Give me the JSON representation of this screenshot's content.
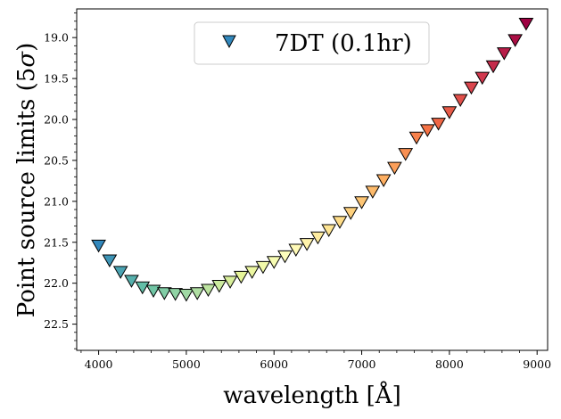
{
  "chart_data": {
    "type": "scatter",
    "xlabel": "wavelength [Å]",
    "ylabel_text": "Point source limits (5",
    "ylabel_symbol": "σ",
    "ylabel_close": ")",
    "xlim": [
      3750,
      9120
    ],
    "ylim": [
      22.82,
      18.65
    ],
    "y_inverted": true,
    "grid": false,
    "legend_placement": "top-center",
    "marker": "triangle-down",
    "colormap": "Spectral_r",
    "x_ticks": [
      4000,
      5000,
      6000,
      7000,
      8000,
      9000
    ],
    "x_tick_labels": [
      "4000",
      "5000",
      "6000",
      "7000",
      "8000",
      "9000"
    ],
    "y_ticks": [
      19.0,
      19.5,
      20.0,
      20.5,
      21.0,
      21.5,
      22.0,
      22.5
    ],
    "y_tick_labels": [
      "19.0",
      "19.5",
      "20.0",
      "20.5",
      "21.0",
      "21.5",
      "22.0",
      "22.5"
    ],
    "series": [
      {
        "name": "7DT (0.1hr)",
        "legend_color": "#3288bd",
        "x": [
          4000,
          4125,
          4250,
          4375,
          4500,
          4625,
          4750,
          4875,
          5000,
          5125,
          5250,
          5375,
          5500,
          5625,
          5750,
          5875,
          6000,
          6125,
          6250,
          6375,
          6500,
          6625,
          6750,
          6875,
          7000,
          7125,
          7250,
          7375,
          7500,
          7625,
          7750,
          7875,
          8000,
          8125,
          8250,
          8375,
          8500,
          8625,
          8750,
          8875
        ],
        "y": [
          21.54,
          21.72,
          21.86,
          21.97,
          22.05,
          22.09,
          22.12,
          22.13,
          22.14,
          22.12,
          22.08,
          22.03,
          21.98,
          21.92,
          21.86,
          21.8,
          21.74,
          21.67,
          21.59,
          21.52,
          21.44,
          21.35,
          21.25,
          21.14,
          21.01,
          20.88,
          20.74,
          20.59,
          20.42,
          20.22,
          20.13,
          20.05,
          19.91,
          19.76,
          19.61,
          19.49,
          19.35,
          19.19,
          19.03,
          18.83
        ]
      }
    ]
  }
}
